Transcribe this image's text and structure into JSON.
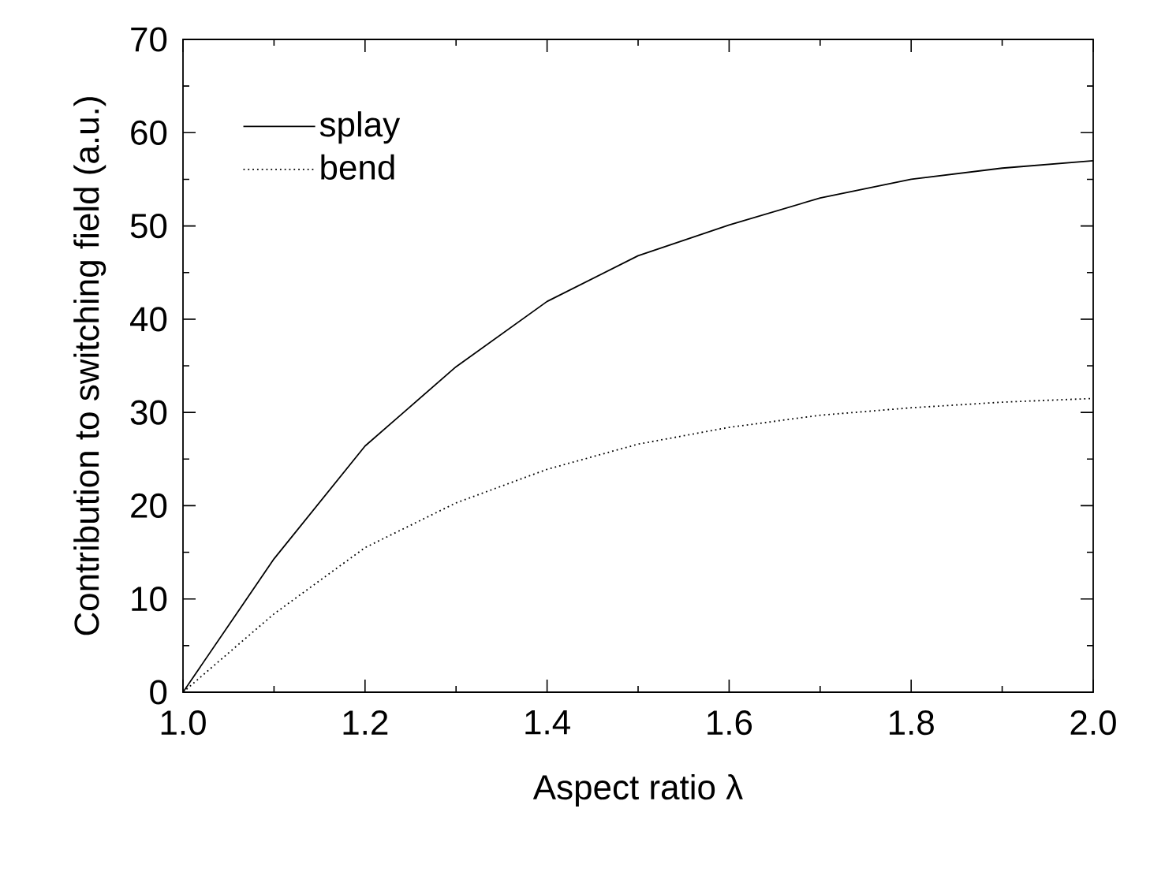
{
  "chart_data": {
    "type": "line",
    "xlabel": "Aspect ratio λ",
    "ylabel": "Contribution to switching field (a.u.)",
    "x": [
      1.0,
      1.1,
      1.2,
      1.3,
      1.4,
      1.5,
      1.6,
      1.7,
      1.8,
      1.9,
      2.0
    ],
    "series": [
      {
        "name": "splay",
        "color": "#000000",
        "line_style": "solid",
        "values": [
          0,
          14.3,
          26.4,
          34.9,
          41.9,
          46.8,
          50.1,
          53.0,
          55.0,
          56.2,
          57.0
        ]
      },
      {
        "name": "bend",
        "color": "#000000",
        "line_style": "dotted",
        "values": [
          0,
          8.4,
          15.5,
          20.3,
          23.9,
          26.6,
          28.4,
          29.7,
          30.5,
          31.1,
          31.5
        ]
      }
    ],
    "xlim": [
      1.0,
      2.0
    ],
    "ylim": [
      0,
      70
    ],
    "xticks": [
      {
        "value": 1.0,
        "label": "1.0"
      },
      {
        "value": 1.2,
        "label": "1.2"
      },
      {
        "value": 1.4,
        "label": "1.4"
      },
      {
        "value": 1.6,
        "label": "1.6"
      },
      {
        "value": 1.8,
        "label": "1.8"
      },
      {
        "value": 2.0,
        "label": "2.0"
      }
    ],
    "yticks": [
      0,
      10,
      20,
      30,
      40,
      50,
      60,
      70
    ],
    "legend": "top left",
    "grid": false,
    "marker": "none"
  }
}
